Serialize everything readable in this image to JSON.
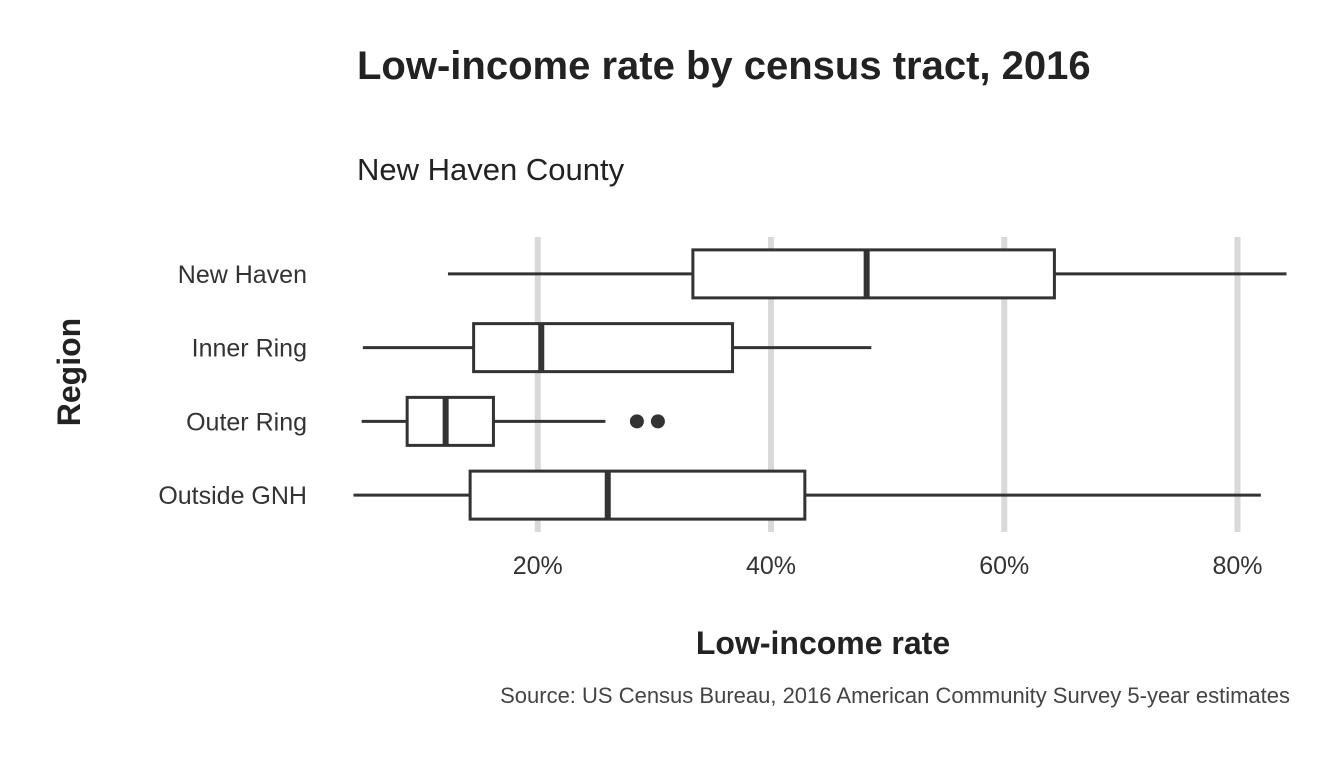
{
  "chart_data": {
    "type": "boxplot",
    "orientation": "horizontal",
    "title": "Low-income rate by census tract, 2016",
    "subtitle": "New Haven County",
    "xlabel": "Low-income rate",
    "ylabel": "Region",
    "caption": "Source: US Census Bureau, 2016 American Community Survey 5-year estimates",
    "xlim": [
      0.045,
      0.845
    ],
    "x_ticks": [
      {
        "value": 0.2,
        "label": "20%"
      },
      {
        "value": 0.4,
        "label": "40%"
      },
      {
        "value": 0.6,
        "label": "60%"
      },
      {
        "value": 0.8,
        "label": "80%"
      }
    ],
    "grid": "vertical major",
    "categories": [
      "New Haven",
      "Inner Ring",
      "Outer Ring",
      "Outside GNH"
    ],
    "boxes": [
      {
        "category": "New Haven",
        "whisker_low": 0.123,
        "q1": 0.333,
        "median": 0.482,
        "q3": 0.643,
        "whisker_high": 0.842,
        "outliers": []
      },
      {
        "category": "Inner Ring",
        "whisker_low": 0.05,
        "q1": 0.145,
        "median": 0.203,
        "q3": 0.367,
        "whisker_high": 0.486,
        "outliers": []
      },
      {
        "category": "Outer Ring",
        "whisker_low": 0.049,
        "q1": 0.088,
        "median": 0.121,
        "q3": 0.162,
        "whisker_high": 0.258,
        "outliers": [
          0.285,
          0.303
        ]
      },
      {
        "category": "Outside GNH",
        "whisker_low": 0.042,
        "q1": 0.142,
        "median": 0.26,
        "q3": 0.429,
        "whisker_high": 0.82,
        "outliers": []
      }
    ],
    "colors": {
      "box_stroke": "#333333",
      "grid": "#d9d9d9",
      "box_fill": "#ffffff"
    }
  }
}
